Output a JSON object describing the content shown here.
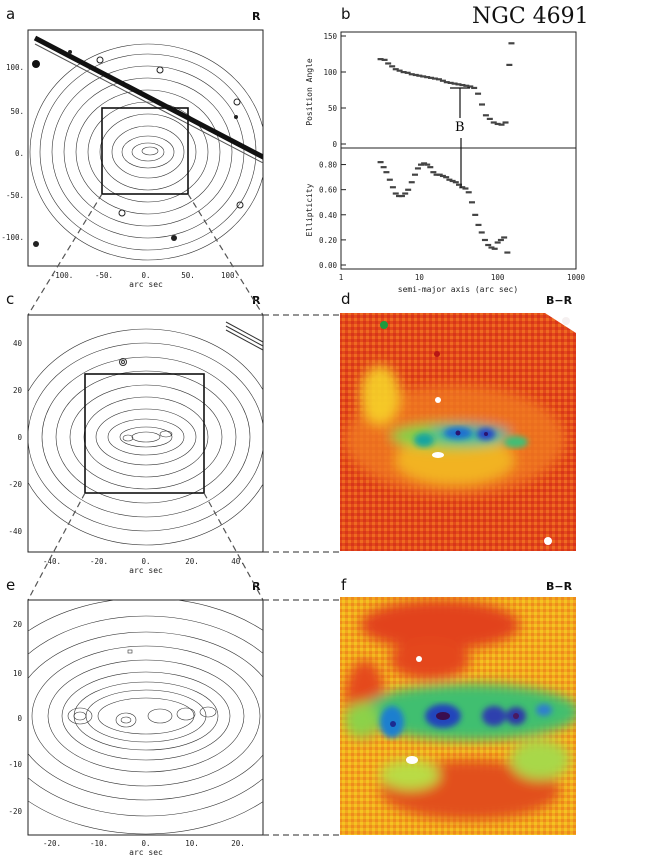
{
  "figure": {
    "galaxy_name": "NGC 4691",
    "panels": {
      "a": {
        "letter": "a",
        "band": "R",
        "x_ticks": [
          "-100.",
          "-50.",
          "0.",
          "50.",
          "100."
        ],
        "y_ticks": [
          "100.",
          "50.",
          "0.",
          "-50.",
          "-100."
        ],
        "xlabel": "arc sec"
      },
      "b": {
        "letter": "b"
      },
      "c": {
        "letter": "c",
        "band": "R",
        "x_ticks": [
          "-40.",
          "-20.",
          "0.",
          "20.",
          "40."
        ],
        "y_ticks": [
          "40",
          "20",
          "0",
          "-20",
          "-40"
        ],
        "xlabel": "arc sec"
      },
      "d": {
        "letter": "d",
        "band": "B−R"
      },
      "e": {
        "letter": "e",
        "band": "R",
        "x_ticks": [
          "-20.",
          "-10.",
          "0.",
          "10.",
          "20."
        ],
        "y_ticks": [
          "20",
          "10",
          "0",
          "-10",
          "-20"
        ],
        "xlabel": "arc sec"
      },
      "f": {
        "letter": "f",
        "band": "B−R"
      }
    }
  },
  "chart_data": [
    {
      "type": "scatter",
      "panel": "b-top",
      "ylabel": "Position Angle",
      "xlabel": "",
      "xscale": "log",
      "xlim": [
        1,
        1000
      ],
      "ylim": [
        0,
        150
      ],
      "y_ticks": [
        "0",
        "50",
        "100",
        "150"
      ],
      "annotation": "B",
      "x": [
        3.2,
        3.6,
        4.0,
        4.5,
        5.0,
        5.6,
        6.3,
        7.1,
        8.0,
        9.0,
        10.0,
        11.2,
        12.6,
        14.1,
        15.8,
        17.8,
        20.0,
        22.4,
        25.1,
        28.2,
        31.6,
        35.5,
        39.8,
        44.7,
        50.1,
        56.2,
        63.1,
        70.8,
        79.4,
        89.1,
        100,
        112,
        126,
        141,
        150
      ],
      "y": [
        118,
        117,
        112,
        108,
        104,
        102,
        100,
        99,
        97,
        96,
        95,
        94,
        93,
        92,
        91,
        90,
        88,
        86,
        85,
        84,
        83,
        82,
        81,
        80,
        78,
        70,
        55,
        40,
        35,
        30,
        28,
        27,
        30,
        110,
        140
      ]
    },
    {
      "type": "scatter",
      "panel": "b-bottom",
      "ylabel": "Ellipticity",
      "xlabel": "semi-major axis (arc sec)",
      "xscale": "log",
      "xlim": [
        1,
        1000
      ],
      "ylim": [
        0,
        0.9
      ],
      "x_ticks": [
        "1",
        "10",
        "100",
        "1000"
      ],
      "y_ticks": [
        "0.00",
        "0.20",
        "0.40",
        "0.60",
        "0.80"
      ],
      "x": [
        3.2,
        3.5,
        3.8,
        4.2,
        4.6,
        5.0,
        5.5,
        6.0,
        6.6,
        7.2,
        8.0,
        8.8,
        9.6,
        10.5,
        11.5,
        12.6,
        13.8,
        15.1,
        16.6,
        18.2,
        20.0,
        22.0,
        24.2,
        26.6,
        29.2,
        32.1,
        35.3,
        38.8,
        42.7,
        47.0,
        51.7,
        56.9,
        62.6,
        68.8,
        75.7,
        83.3,
        91.6,
        100,
        110,
        121,
        133
      ],
      "y": [
        0.82,
        0.78,
        0.74,
        0.68,
        0.62,
        0.57,
        0.55,
        0.55,
        0.57,
        0.6,
        0.66,
        0.72,
        0.77,
        0.8,
        0.81,
        0.8,
        0.78,
        0.74,
        0.72,
        0.72,
        0.71,
        0.7,
        0.68,
        0.67,
        0.66,
        0.64,
        0.62,
        0.61,
        0.58,
        0.5,
        0.4,
        0.32,
        0.26,
        0.2,
        0.16,
        0.14,
        0.13,
        0.18,
        0.2,
        0.22,
        0.1
      ]
    }
  ]
}
